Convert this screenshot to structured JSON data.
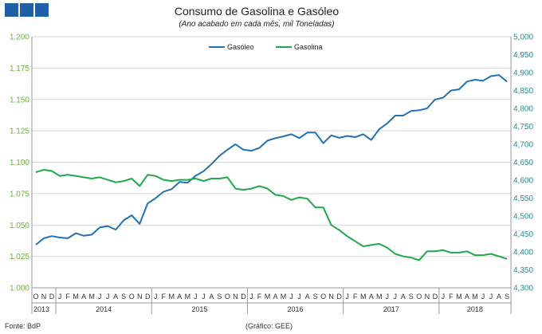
{
  "colors": {
    "logo": "#1f5fa6",
    "gasoleo": "#2471b3",
    "gasolina": "#21a84c",
    "grid": "#d9d9d9",
    "axis": "#999999"
  },
  "chart_data": {
    "type": "line",
    "title": "Consumo de Gasolina e Gasóleo",
    "subtitle": "(Ano acabado em cada mês, mil Toneladas)",
    "source": "Fonte: BdP",
    "credit": "(Gráfico: GEE)",
    "legend_position": "top-center",
    "grid": true,
    "left_axis": {
      "series": "Gasolina",
      "ylim": [
        1000,
        1200
      ],
      "ticks": [
        "1.000",
        "1.025",
        "1.050",
        "1.075",
        "1.100",
        "1.125",
        "1.150",
        "1.175",
        "1.200"
      ]
    },
    "right_axis": {
      "series": "Gasóleo",
      "ylim": [
        4300,
        5000
      ],
      "ticks": [
        "4,300",
        "4,350",
        "4,400",
        "4,450",
        "4,500",
        "4,550",
        "4,600",
        "4,650",
        "4,700",
        "4,750",
        "4,800",
        "4,850",
        "4,900",
        "4,950",
        "5,000"
      ]
    },
    "x": [
      "O",
      "N",
      "D",
      "J",
      "F",
      "M",
      "A",
      "M",
      "J",
      "J",
      "A",
      "S",
      "O",
      "N",
      "D",
      "J",
      "F",
      "M",
      "A",
      "M",
      "J",
      "J",
      "A",
      "S",
      "O",
      "N",
      "D",
      "J",
      "F",
      "M",
      "A",
      "M",
      "J",
      "J",
      "A",
      "S",
      "O",
      "N",
      "D",
      "J",
      "F",
      "M",
      "A",
      "M",
      "J",
      "J",
      "A",
      "S",
      "O",
      "N",
      "D",
      "J",
      "F",
      "M",
      "A",
      "M",
      "J",
      "J",
      "A",
      "S"
    ],
    "years": [
      {
        "label": "2013",
        "start": 0,
        "end": 2
      },
      {
        "label": "2014",
        "start": 3,
        "end": 14
      },
      {
        "label": "2015",
        "start": 15,
        "end": 26
      },
      {
        "label": "2016",
        "start": 27,
        "end": 38
      },
      {
        "label": "2017",
        "start": 39,
        "end": 50
      },
      {
        "label": "2018",
        "start": 51,
        "end": 59
      }
    ],
    "series": [
      {
        "name": "Gasóleo",
        "axis": "right",
        "values": [
          4420,
          4438,
          4444,
          4440,
          4438,
          4452,
          4445,
          4448,
          4468,
          4472,
          4462,
          4488,
          4502,
          4478,
          4535,
          4550,
          4568,
          4575,
          4595,
          4593,
          4612,
          4625,
          4645,
          4668,
          4685,
          4700,
          4685,
          4682,
          4690,
          4710,
          4717,
          4722,
          4728,
          4717,
          4733,
          4733,
          4703,
          4725,
          4718,
          4723,
          4720,
          4728,
          4712,
          4742,
          4758,
          4780,
          4780,
          4793,
          4795,
          4800,
          4825,
          4830,
          4850,
          4853,
          4875,
          4880,
          4877,
          4890,
          4893,
          4875
        ]
      },
      {
        "name": "Gasolina",
        "axis": "left",
        "values": [
          1092,
          1094,
          1093,
          1089,
          1090,
          1089,
          1088,
          1087,
          1088,
          1086,
          1084,
          1085,
          1087,
          1081,
          1090,
          1089,
          1086,
          1085,
          1086,
          1086,
          1087,
          1085,
          1087,
          1087,
          1088,
          1079,
          1078,
          1079,
          1081,
          1079,
          1074,
          1073,
          1070,
          1072,
          1071,
          1064,
          1064,
          1050,
          1046,
          1041,
          1037,
          1033,
          1034,
          1035,
          1032,
          1027,
          1025,
          1024,
          1022,
          1029,
          1029,
          1030,
          1028,
          1028,
          1029,
          1026,
          1026,
          1027,
          1025,
          1023
        ]
      }
    ]
  }
}
